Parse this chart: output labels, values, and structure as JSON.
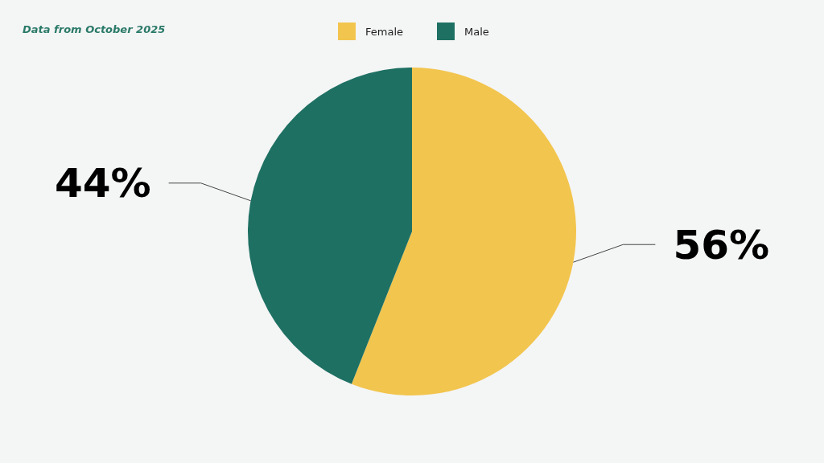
{
  "chart_data": {
    "type": "pie",
    "categories": [
      "Female",
      "Male"
    ],
    "values": [
      56,
      44
    ],
    "colors": [
      "#f2c54e",
      "#1e7063"
    ],
    "value_labels": [
      "56%",
      "44%"
    ],
    "legend": "top",
    "annotations": [
      "Data from October 2025"
    ]
  }
}
